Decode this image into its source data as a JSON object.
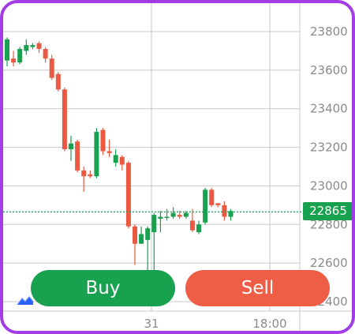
{
  "trade": {
    "buy_label": "Buy",
    "sell_label": "Sell",
    "current_price": "22865"
  },
  "colors": {
    "up": "#18a14e",
    "down": "#ea5a43",
    "grid": "#c8c8c8",
    "buy": "#18a14e",
    "sell": "#ee5d45",
    "frame": "#a23ce6",
    "price_line": "#18a14e"
  },
  "icons": {
    "logo": "tradingview-logo-icon"
  },
  "chart_data": {
    "type": "candlestick",
    "ylim": [
      22410,
      23900
    ],
    "y_ticks": [
      "23800",
      "23600",
      "23400",
      "23200",
      "23000",
      "22800",
      "22600",
      "22400"
    ],
    "x_ticks": [
      "31",
      "18:00"
    ],
    "current_price": 22865,
    "candles": [
      {
        "o": 23650,
        "c": 23760,
        "h": 23770,
        "l": 23620
      },
      {
        "o": 23660,
        "c": 23640,
        "h": 23700,
        "l": 23620
      },
      {
        "o": 23640,
        "c": 23710,
        "h": 23720,
        "l": 23630
      },
      {
        "o": 23700,
        "c": 23730,
        "h": 23760,
        "l": 23680
      },
      {
        "o": 23720,
        "c": 23730,
        "h": 23740,
        "l": 23710
      },
      {
        "o": 23740,
        "c": 23710,
        "h": 23750,
        "l": 23690
      },
      {
        "o": 23710,
        "c": 23660,
        "h": 23720,
        "l": 23640
      },
      {
        "o": 23660,
        "c": 23560,
        "h": 23680,
        "l": 23550
      },
      {
        "o": 23580,
        "c": 23500,
        "h": 23590,
        "l": 23490
      },
      {
        "o": 23500,
        "c": 23190,
        "h": 23510,
        "l": 23180
      },
      {
        "o": 23190,
        "c": 23220,
        "h": 23260,
        "l": 23130
      },
      {
        "o": 23230,
        "c": 23080,
        "h": 23240,
        "l": 23070
      },
      {
        "o": 23080,
        "c": 23050,
        "h": 23100,
        "l": 22970
      },
      {
        "o": 23060,
        "c": 23050,
        "h": 23080,
        "l": 23040
      },
      {
        "o": 23050,
        "c": 23280,
        "h": 23300,
        "l": 23040
      },
      {
        "o": 23290,
        "c": 23180,
        "h": 23300,
        "l": 23160
      },
      {
        "o": 23180,
        "c": 23170,
        "h": 23240,
        "l": 23150
      },
      {
        "o": 23120,
        "c": 23160,
        "h": 23190,
        "l": 23100
      },
      {
        "o": 23150,
        "c": 23110,
        "h": 23160,
        "l": 23080
      },
      {
        "o": 23120,
        "c": 22790,
        "h": 23130,
        "l": 22780
      },
      {
        "o": 22790,
        "c": 22700,
        "h": 22800,
        "l": 22590
      },
      {
        "o": 22700,
        "c": 22750,
        "h": 22790,
        "l": 22700
      },
      {
        "o": 22720,
        "c": 22780,
        "h": 22790,
        "l": 22560
      },
      {
        "o": 22760,
        "c": 22850,
        "h": 22860,
        "l": 22500
      },
      {
        "o": 22830,
        "c": 22840,
        "h": 22870,
        "l": 22760
      },
      {
        "o": 22840,
        "c": 22840,
        "h": 22880,
        "l": 22820
      },
      {
        "o": 22840,
        "c": 22860,
        "h": 22890,
        "l": 22830
      },
      {
        "o": 22850,
        "c": 22840,
        "h": 22870,
        "l": 22830
      },
      {
        "o": 22840,
        "c": 22860,
        "h": 22870,
        "l": 22830
      },
      {
        "o": 22820,
        "c": 22770,
        "h": 22880,
        "l": 22760
      },
      {
        "o": 22760,
        "c": 22800,
        "h": 22820,
        "l": 22750
      },
      {
        "o": 22810,
        "c": 22980,
        "h": 22990,
        "l": 22800
      },
      {
        "o": 22980,
        "c": 22900,
        "h": 22990,
        "l": 22890
      },
      {
        "o": 22910,
        "c": 22900,
        "h": 22910,
        "l": 22890
      },
      {
        "o": 22900,
        "c": 22840,
        "h": 22920,
        "l": 22820
      },
      {
        "o": 22840,
        "c": 22870,
        "h": 22880,
        "l": 22820
      }
    ]
  }
}
